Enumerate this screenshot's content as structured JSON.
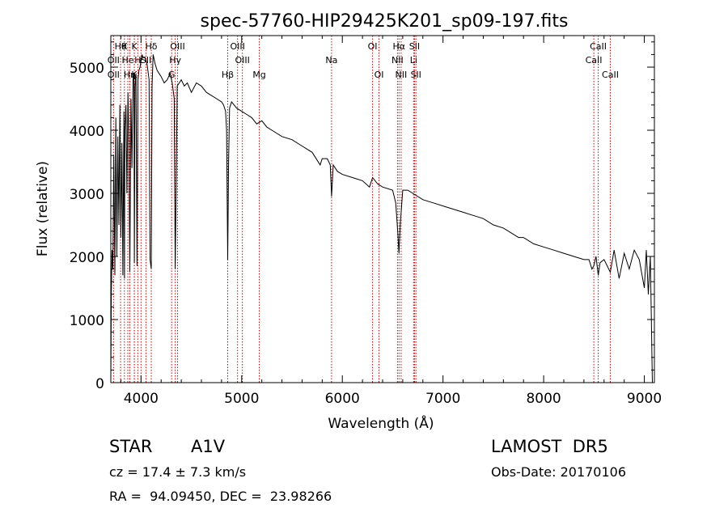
{
  "chart_data": {
    "type": "line",
    "title": "spec-57760-HIP29425K201_sp09-197.fits",
    "xlabel": "Wavelength (Å)",
    "ylabel": "Flux (relative)",
    "xlim": [
      3700,
      9100
    ],
    "ylim": [
      0,
      5500
    ],
    "x_ticks": [
      4000,
      5000,
      6000,
      7000,
      8000,
      9000
    ],
    "y_ticks": [
      0,
      1000,
      2000,
      3000,
      4000,
      5000
    ],
    "grid": false,
    "series": [
      {
        "x": [
          3700,
          3705,
          3712,
          3720,
          3730,
          3740,
          3750,
          3760,
          3770,
          3780,
          3790,
          3800,
          3810,
          3820,
          3830,
          3836,
          3840,
          3850,
          3860,
          3870,
          3880,
          3889,
          3900,
          3910,
          3920,
          3930,
          3934,
          3940,
          3950,
          3960,
          3970,
          3980,
          3990,
          4000,
          4010,
          4020,
          4040,
          4060,
          4080,
          4090,
          4102,
          4110,
          4120,
          4140,
          4160,
          4180,
          4200,
          4230,
          4260,
          4290,
          4310,
          4330,
          4340,
          4350,
          4360,
          4380,
          4400,
          4430,
          4460,
          4500,
          4550,
          4600,
          4650,
          4700,
          4750,
          4800,
          4820,
          4840,
          4850,
          4861,
          4870,
          4880,
          4900,
          4950,
          5000,
          5050,
          5100,
          5150,
          5200,
          5250,
          5300,
          5400,
          5500,
          5600,
          5700,
          5780,
          5800,
          5850,
          5880,
          5893,
          5910,
          5950,
          6000,
          6100,
          6200,
          6270,
          6300,
          6350,
          6400,
          6500,
          6530,
          6550,
          6562,
          6575,
          6600,
          6650,
          6700,
          6800,
          6900,
          7000,
          7100,
          7200,
          7300,
          7400,
          7500,
          7600,
          7700,
          7750,
          7800,
          7900,
          8000,
          8100,
          8200,
          8300,
          8400,
          8450,
          8480,
          8498,
          8520,
          8542,
          8560,
          8600,
          8662,
          8700,
          8750,
          8800,
          8850,
          8900,
          8950,
          9000,
          9020,
          9040,
          9060,
          9080
        ],
        "values": [
          0,
          1400,
          2100,
          1800,
          3600,
          1700,
          4200,
          2000,
          3900,
          2500,
          4400,
          2300,
          3800,
          1700,
          4300,
          1650,
          4000,
          4400,
          3000,
          4600,
          3800,
          1750,
          4500,
          3400,
          4800,
          4900,
          1900,
          4700,
          4900,
          1850,
          4800,
          4950,
          5000,
          5100,
          5200,
          5150,
          5150,
          5050,
          4800,
          1950,
          1800,
          4700,
          5200,
          5050,
          4950,
          4900,
          4850,
          4750,
          4800,
          4900,
          4750,
          4500,
          1800,
          3200,
          4700,
          4750,
          4800,
          4700,
          4750,
          4600,
          4750,
          4700,
          4600,
          4550,
          4500,
          4450,
          4400,
          4300,
          4000,
          1950,
          3500,
          4350,
          4450,
          4350,
          4300,
          4250,
          4200,
          4100,
          4150,
          4050,
          4000,
          3900,
          3850,
          3750,
          3650,
          3450,
          3550,
          3550,
          3450,
          2950,
          3450,
          3350,
          3300,
          3250,
          3200,
          3100,
          3250,
          3150,
          3100,
          3050,
          2850,
          2400,
          2050,
          2500,
          3050,
          3050,
          3000,
          2900,
          2850,
          2800,
          2750,
          2700,
          2650,
          2600,
          2500,
          2450,
          2350,
          2300,
          2300,
          2200,
          2150,
          2100,
          2050,
          2000,
          1950,
          1950,
          1800,
          1850,
          2000,
          1700,
          1900,
          1950,
          1750,
          2100,
          1650,
          2050,
          1800,
          2100,
          1950,
          1500,
          2100,
          1400,
          2000,
          0
        ]
      }
    ],
    "annotations": [
      {
        "x": 3797,
        "label": "Hθ",
        "row": 0
      },
      {
        "x": 3835,
        "label": "K",
        "row": 0
      },
      {
        "x": 3934,
        "label": "K",
        "row": 0
      },
      {
        "x": 4102,
        "label": "Hδ",
        "row": 0
      },
      {
        "x": 4363,
        "label": "OIII",
        "row": 0
      },
      {
        "x": 4959,
        "label": "OIII",
        "row": 0
      },
      {
        "x": 6300,
        "label": "OI",
        "row": 0
      },
      {
        "x": 6563,
        "label": "Hα",
        "row": 0
      },
      {
        "x": 6717,
        "label": "SII",
        "row": 0
      },
      {
        "x": 8542,
        "label": "CaII",
        "row": 0
      },
      {
        "x": 3727,
        "label": "OII",
        "row": 1
      },
      {
        "x": 3869,
        "label": "He",
        "row": 1
      },
      {
        "x": 3968,
        "label": "H",
        "row": 1
      },
      {
        "x": 4000,
        "label": "ε",
        "row": 1
      },
      {
        "x": 4050,
        "label": "SII",
        "row": 1
      },
      {
        "x": 4340,
        "label": "Hγ",
        "row": 1
      },
      {
        "x": 5007,
        "label": "OIII",
        "row": 1
      },
      {
        "x": 5893,
        "label": "Na",
        "row": 1
      },
      {
        "x": 6548,
        "label": "NII",
        "row": 1
      },
      {
        "x": 6708,
        "label": "Li",
        "row": 1
      },
      {
        "x": 8498,
        "label": "CaII",
        "row": 1
      },
      {
        "x": 3727,
        "label": "OII",
        "row": 2
      },
      {
        "x": 3889,
        "label": "Hη",
        "row": 2
      },
      {
        "x": 3933,
        "label": "K",
        "row": 2
      },
      {
        "x": 4304,
        "label": "G",
        "row": 2
      },
      {
        "x": 4861,
        "label": "Hβ",
        "row": 2
      },
      {
        "x": 5175,
        "label": "Mg",
        "row": 2
      },
      {
        "x": 6364,
        "label": "OI",
        "row": 2
      },
      {
        "x": 6584,
        "label": "NII",
        "row": 2
      },
      {
        "x": 6731,
        "label": "SII",
        "row": 2
      },
      {
        "x": 8662,
        "label": "CaII",
        "row": 2
      }
    ],
    "line_color": "#000000",
    "marker_line_color": "#cc0000"
  },
  "info": {
    "star_label": "STAR",
    "spectral_type": "A1V",
    "survey": "LAMOST  DR5",
    "redshift": "cz = 17.4 ± 7.3 km/s",
    "obs_date": "Obs-Date: 20170106",
    "coords": "RA =  94.09450, DEC =  23.98266"
  }
}
